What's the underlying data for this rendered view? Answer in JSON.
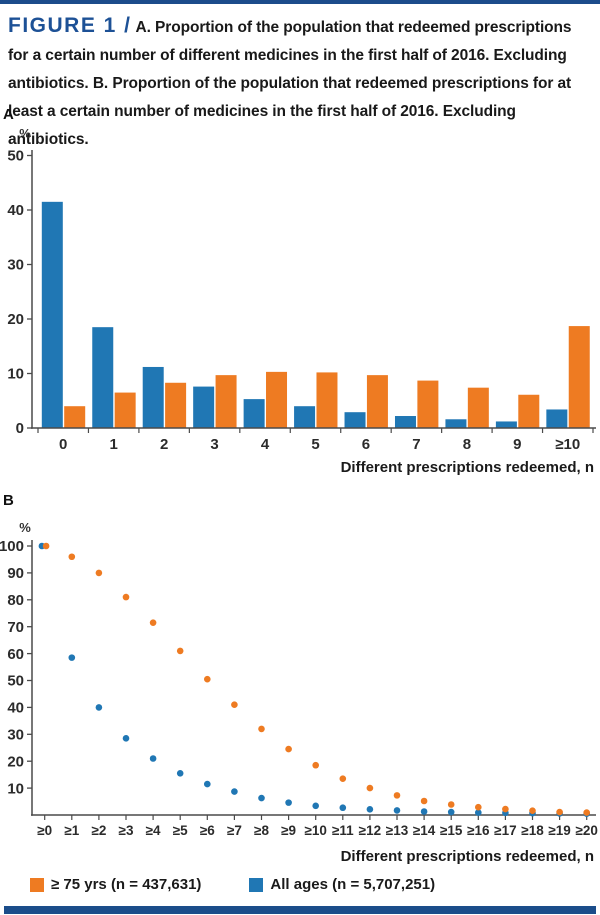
{
  "header": {
    "figure_label": "FIGURE 1 /",
    "part_a_label": "A.",
    "part_a_text": " Proportion of the population that redeemed prescriptions for a certain number of different medicines in the first half of 2016. Excluding antibiotics. ",
    "part_b_label": "B.",
    "part_b_text": " Proportion of the population that redeemed prescriptions for at least a certain number of medicines in the first half of 2016. Excluding antibiotics."
  },
  "colors": {
    "orange": "#ee7b22",
    "blue": "#2077b4",
    "axis": "#4a4a4a",
    "accent_blue": "#1c4c8b"
  },
  "legend": [
    {
      "label": "≥ 75 yrs (n = 437,631)",
      "color_key": "orange"
    },
    {
      "label": "All ages (n = 5,707,251)",
      "color_key": "blue"
    }
  ],
  "chart_data": [
    {
      "type": "bar",
      "panel": "A",
      "title": "",
      "xlabel": "Different prescriptions redeemed, n",
      "ylabel": "%",
      "ylim": [
        0,
        50
      ],
      "yticks": [
        0,
        10,
        20,
        30,
        40,
        50
      ],
      "grid": false,
      "legend_position": "bottom-shared",
      "categories": [
        "0",
        "1",
        "2",
        "3",
        "4",
        "5",
        "6",
        "7",
        "8",
        "9",
        "≥10"
      ],
      "series": [
        {
          "name": "All ages (n = 5,707,251)",
          "color_key": "blue",
          "values": [
            41.5,
            18.5,
            11.2,
            7.6,
            5.3,
            4.0,
            2.9,
            2.2,
            1.6,
            1.2,
            3.4
          ]
        },
        {
          "name": "≥ 75 yrs (n = 437,631)",
          "color_key": "orange",
          "values": [
            4.0,
            6.5,
            8.3,
            9.7,
            10.3,
            10.2,
            9.7,
            8.7,
            7.4,
            6.1,
            18.7
          ]
        }
      ]
    },
    {
      "type": "scatter",
      "panel": "B",
      "title": "",
      "xlabel": "Different prescriptions redeemed, n",
      "ylabel": "%",
      "ylim": [
        0,
        100
      ],
      "yticks": [
        10,
        20,
        30,
        40,
        50,
        60,
        70,
        80,
        90,
        100
      ],
      "grid": false,
      "legend_position": "bottom-shared",
      "categories": [
        "≥0",
        "≥1",
        "≥2",
        "≥3",
        "≥4",
        "≥5",
        "≥6",
        "≥7",
        "≥8",
        "≥9",
        "≥10",
        "≥11",
        "≥12",
        "≥13",
        "≥14",
        "≥15",
        "≥16",
        "≥17",
        "≥18",
        "≥19",
        "≥20"
      ],
      "series": [
        {
          "name": "All ages (n = 5,707,251)",
          "color_key": "blue",
          "values": [
            100,
            58.5,
            40,
            28.5,
            21,
            15.5,
            11.5,
            8.7,
            6.3,
            4.6,
            3.4,
            2.7,
            2.1,
            1.7,
            1.3,
            1.1,
            0.9,
            0.8,
            0.7,
            0.6,
            0.5
          ]
        },
        {
          "name": "≥ 75 yrs (n = 437,631)",
          "color_key": "orange",
          "values": [
            100,
            96,
            90,
            81,
            71.5,
            61,
            50.5,
            41,
            32,
            24.5,
            18.5,
            13.5,
            10,
            7.3,
            5.2,
            3.9,
            2.9,
            2.2,
            1.6,
            1.1,
            0.9
          ]
        }
      ]
    }
  ]
}
